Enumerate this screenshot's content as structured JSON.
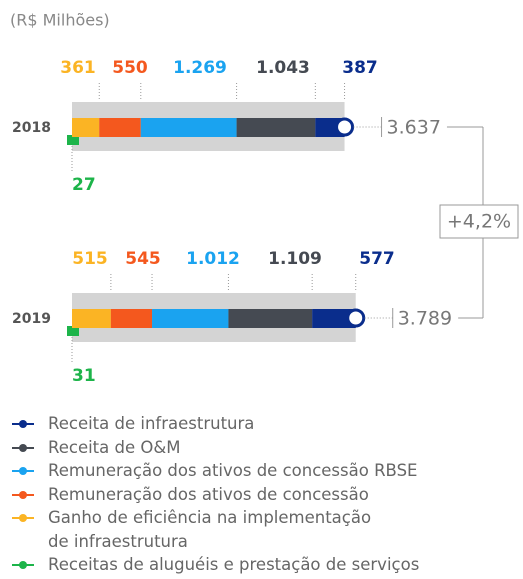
{
  "chart_data": {
    "type": "bar",
    "subtitle": "(R$ Milhões)",
    "categories": [
      "2018",
      "2019"
    ],
    "series": [
      {
        "name": "Receitas de aluguéis e prestação de serviços",
        "color": "#1db44a",
        "values": [
          27,
          31
        ]
      },
      {
        "name": "Ganho de eficiência na implementação\nde infraestrutura",
        "color": "#fbb424",
        "values": [
          361,
          515
        ]
      },
      {
        "name": "Remuneração dos ativos de concessão",
        "color": "#f4581e",
        "values": [
          550,
          545
        ]
      },
      {
        "name": "Remuneração dos ativos de concessão RBSE",
        "color": "#1aa3f0",
        "values": [
          1269,
          1012
        ],
        "value_labels": [
          "1.269",
          "1.012"
        ]
      },
      {
        "name": "Receita de O&M",
        "color": "#454a52",
        "values": [
          1043,
          1109
        ],
        "value_labels": [
          "1.043",
          "1.109"
        ]
      },
      {
        "name": "Receita de infraestrutura",
        "color": "#0a2d8c",
        "values": [
          387,
          577
        ]
      }
    ],
    "totals": [
      3637,
      3789
    ],
    "total_labels": [
      "3.637",
      "3.789"
    ],
    "growth_label": "+4,2%"
  }
}
